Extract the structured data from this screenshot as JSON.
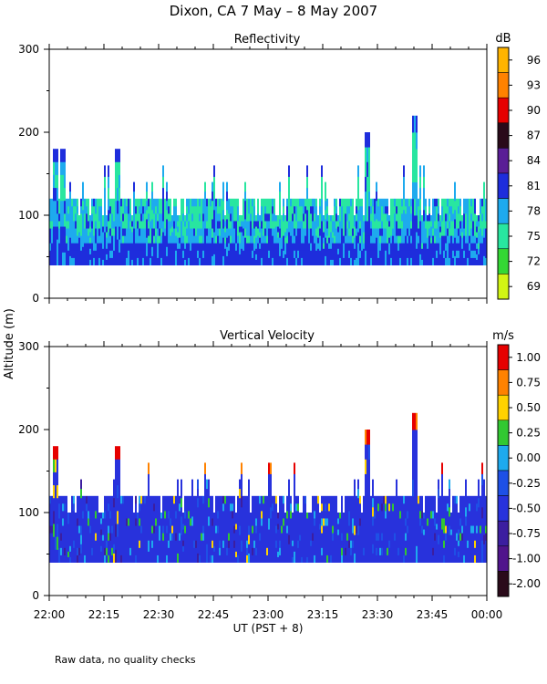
{
  "title": "Dixon, CA   7 May –   8 May 2007",
  "footer": "Raw data, no quality checks",
  "y_axis_label": "Altitude (m)",
  "x_axis_label": "UT  (PST + 8)",
  "x_ticks": [
    "22:00",
    "22:15",
    "22:30",
    "22:45",
    "23:00",
    "23:15",
    "23:30",
    "23:45",
    "00:00"
  ],
  "chart_data": [
    {
      "type": "heatmap",
      "title": "Reflectivity",
      "units": "dB",
      "xlim_minutes": [
        0,
        120
      ],
      "ylim": [
        0,
        300
      ],
      "y_ticks": [
        0,
        100,
        200,
        300
      ],
      "colorbar": {
        "labels": [
          "96",
          "93",
          "90",
          "87",
          "84",
          "81",
          "78",
          "75",
          "72",
          "69"
        ],
        "colors": [
          "#ffb400",
          "#ff8200",
          "#e60000",
          "#2a0a1a",
          "#5a1e96",
          "#1e2ddc",
          "#1eaaee",
          "#28e6a0",
          "#34d834",
          "#d2f514"
        ]
      },
      "data_bottom_m": 40,
      "typical_top_m": 120,
      "peak_echoes": [
        {
          "time_min": 1.5,
          "top_m": 180
        },
        {
          "time_min": 3.5,
          "top_m": 180
        },
        {
          "time_min": 18.5,
          "top_m": 180
        },
        {
          "time_min": 87,
          "top_m": 200
        },
        {
          "time_min": 100,
          "top_m": 220
        }
      ]
    },
    {
      "type": "heatmap",
      "title": "Vertical Velocity",
      "units": "m/s",
      "xlim_minutes": [
        0,
        120
      ],
      "ylim": [
        0,
        300
      ],
      "y_ticks": [
        0,
        100,
        200,
        300
      ],
      "colorbar": {
        "labels": [
          "1.00",
          "0.75",
          "0.50",
          "0.25",
          "0.00",
          "-0.25",
          "-0.50",
          "-0.75",
          "-1.00",
          "-2.00"
        ],
        "colors": [
          "#e60000",
          "#ff8200",
          "#ffd200",
          "#32c832",
          "#1eaaee",
          "#1e50e6",
          "#2832dc",
          "#3c1ea0",
          "#50148c",
          "#2a0a1a"
        ]
      },
      "data_bottom_m": 40,
      "typical_top_m": 120,
      "peak_echoes": [
        {
          "time_min": 1.5,
          "top_m": 180
        },
        {
          "time_min": 18.5,
          "top_m": 180
        },
        {
          "time_min": 87,
          "top_m": 200
        },
        {
          "time_min": 100,
          "top_m": 220
        }
      ]
    }
  ]
}
